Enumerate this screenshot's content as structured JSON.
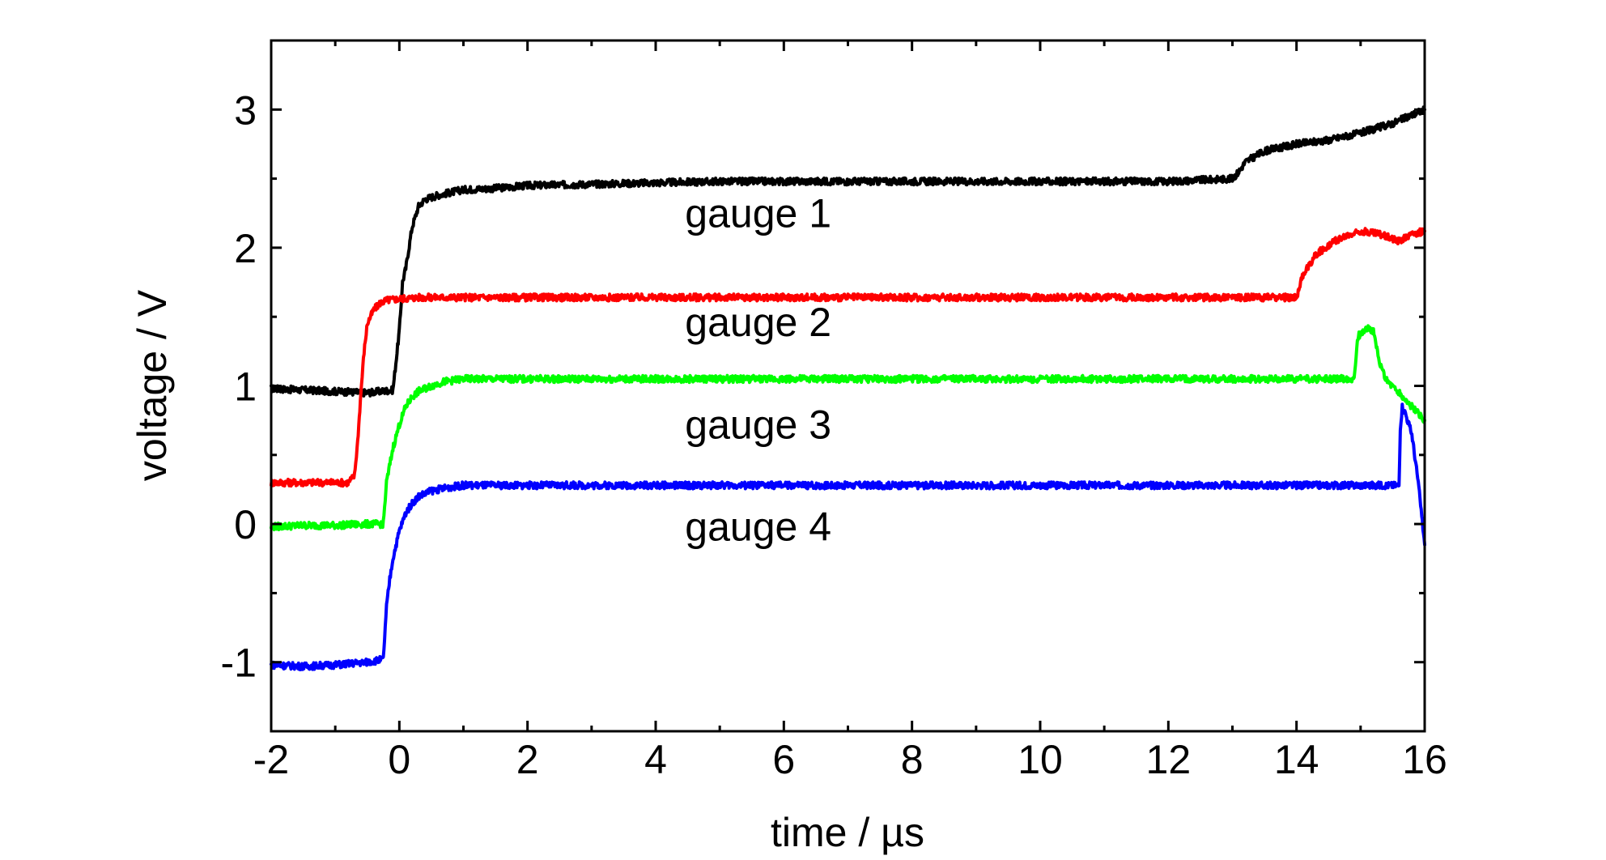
{
  "chart_data": {
    "type": "line",
    "title": "",
    "xlabel": "time / µs",
    "ylabel": "voltage / V",
    "xlim": [
      -2,
      16
    ],
    "ylim": [
      -1.5,
      3.5
    ],
    "xticks": [
      -2,
      0,
      2,
      4,
      6,
      8,
      10,
      12,
      14,
      16
    ],
    "yticks": [
      -1,
      0,
      1,
      2,
      3
    ],
    "xminor": [
      -1,
      1,
      3,
      5,
      7,
      9,
      11,
      13,
      15
    ],
    "yminor": [
      -1.5,
      -0.5,
      0.5,
      1.5,
      2.5,
      3.5
    ],
    "grid": false,
    "legend": "none",
    "annotations": [
      {
        "text": "gauge 1",
        "x": 5.6,
        "y": 2.15
      },
      {
        "text": "gauge 2",
        "x": 5.6,
        "y": 1.36
      },
      {
        "text": "gauge 3",
        "x": 5.6,
        "y": 0.62
      },
      {
        "text": "gauge 4",
        "x": 5.6,
        "y": -0.12
      }
    ],
    "series": [
      {
        "color": "#000000",
        "x": [
          -2,
          -1.5,
          -1,
          -0.5,
          -0.1,
          0.0,
          0.05,
          0.1,
          0.2,
          0.3,
          0.4,
          0.6,
          0.8,
          1.0,
          1.5,
          2.0,
          3.0,
          4.0,
          5.0,
          6.0,
          8.0,
          10.0,
          12.0,
          13.0,
          13.1,
          13.2,
          13.5,
          14.0,
          14.5,
          15.0,
          15.5,
          16.0
        ],
        "y": [
          0.98,
          0.97,
          0.96,
          0.95,
          0.97,
          1.4,
          1.75,
          1.85,
          2.15,
          2.3,
          2.35,
          2.38,
          2.4,
          2.42,
          2.43,
          2.45,
          2.46,
          2.47,
          2.48,
          2.48,
          2.48,
          2.48,
          2.48,
          2.5,
          2.55,
          2.62,
          2.7,
          2.75,
          2.78,
          2.83,
          2.9,
          3.0
        ]
      },
      {
        "color": "#ff0000",
        "x": [
          -2,
          -1.5,
          -1,
          -0.8,
          -0.7,
          -0.65,
          -0.6,
          -0.55,
          -0.5,
          -0.4,
          -0.3,
          -0.2,
          0.0,
          0.3,
          0.6,
          1.0,
          2.0,
          4.0,
          6.0,
          8.0,
          10.0,
          12.0,
          13.0,
          14.0,
          14.1,
          14.3,
          14.6,
          15.0,
          15.3,
          15.6,
          15.8,
          16.0
        ],
        "y": [
          0.3,
          0.3,
          0.3,
          0.3,
          0.35,
          0.6,
          0.95,
          1.25,
          1.45,
          1.55,
          1.6,
          1.62,
          1.63,
          1.64,
          1.64,
          1.64,
          1.64,
          1.64,
          1.64,
          1.64,
          1.64,
          1.64,
          1.64,
          1.64,
          1.8,
          1.95,
          2.05,
          2.12,
          2.1,
          2.05,
          2.1,
          2.12
        ]
      },
      {
        "color": "#00ff00",
        "x": [
          -2,
          -1.5,
          -1,
          -0.5,
          -0.25,
          -0.2,
          -0.1,
          0.0,
          0.1,
          0.2,
          0.3,
          0.5,
          0.7,
          1.0,
          1.5,
          2.0,
          4.0,
          6.0,
          8.0,
          10.0,
          12.0,
          14.0,
          14.9,
          14.95,
          15.0,
          15.1,
          15.2,
          15.3,
          15.4,
          15.6,
          15.8,
          16.0
        ],
        "y": [
          -0.02,
          -0.01,
          -0.01,
          0.0,
          0.0,
          0.3,
          0.55,
          0.72,
          0.85,
          0.92,
          0.96,
          1.0,
          1.03,
          1.05,
          1.05,
          1.05,
          1.05,
          1.05,
          1.05,
          1.05,
          1.05,
          1.05,
          1.05,
          1.35,
          1.38,
          1.42,
          1.4,
          1.15,
          1.05,
          0.95,
          0.85,
          0.75
        ]
      },
      {
        "color": "#0000ff",
        "x": [
          -2,
          -1.5,
          -1,
          -0.5,
          -0.25,
          -0.2,
          -0.15,
          -0.1,
          0.0,
          0.1,
          0.2,
          0.3,
          0.5,
          0.7,
          1.0,
          1.5,
          2.0,
          4.0,
          6.0,
          8.0,
          10.0,
          12.0,
          14.0,
          15.0,
          15.6,
          15.62,
          15.65,
          15.7,
          15.8,
          15.9,
          16.0
        ],
        "y": [
          -1.02,
          -1.03,
          -1.02,
          -1.0,
          -0.98,
          -0.6,
          -0.4,
          -0.25,
          -0.05,
          0.08,
          0.15,
          0.2,
          0.24,
          0.26,
          0.28,
          0.28,
          0.28,
          0.28,
          0.28,
          0.28,
          0.28,
          0.28,
          0.28,
          0.28,
          0.28,
          0.7,
          0.85,
          0.8,
          0.65,
          0.3,
          -0.15
        ]
      }
    ]
  }
}
